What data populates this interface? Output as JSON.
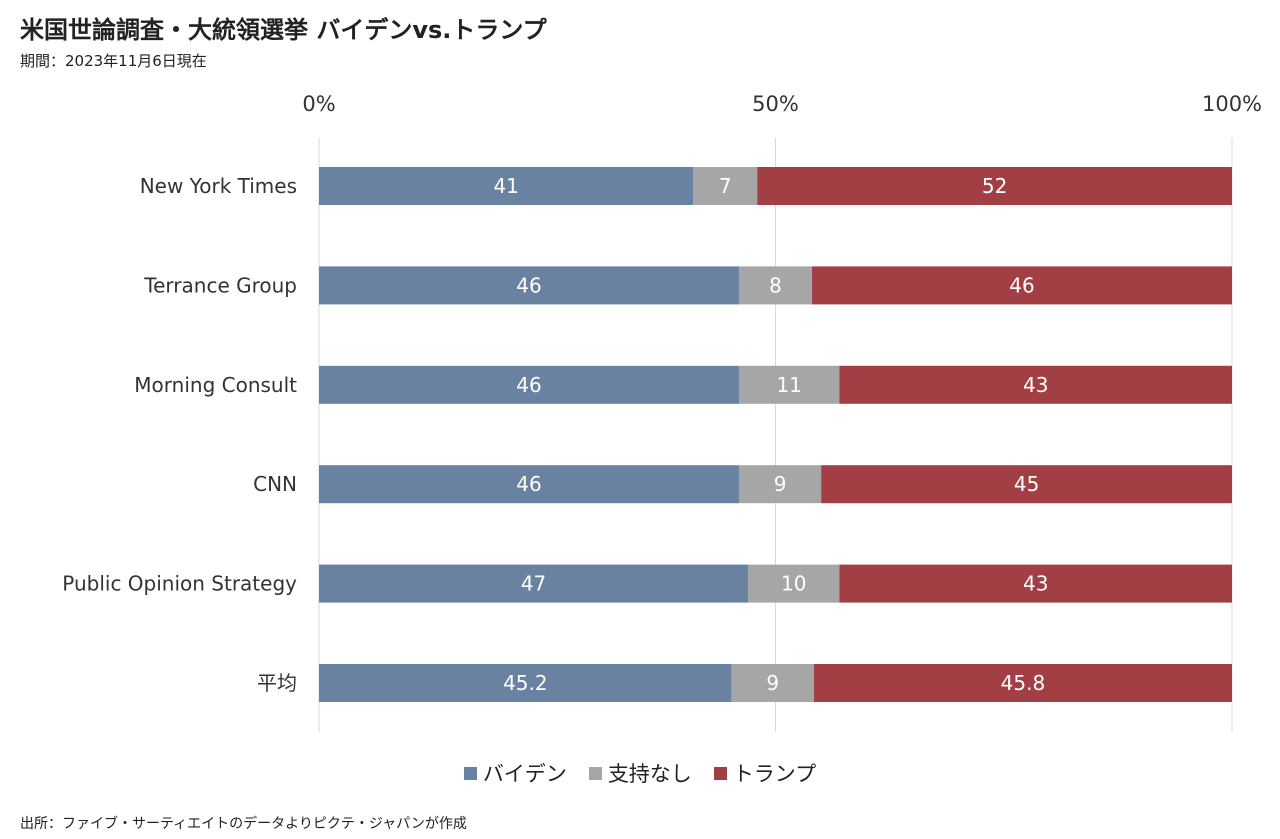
{
  "header": {
    "title": "米国世論調査・大統領選挙 バイデンvs.トランプ",
    "subtitle": "期間：2023年11月6日現在"
  },
  "source": "出所：ファイブ・サーティエイトのデータよりピクテ・ジャパンが作成",
  "chart_data": {
    "type": "bar",
    "orientation": "horizontal",
    "stacked": true,
    "normalized_to": 100,
    "categories": [
      "New York Times",
      "Terrance Group",
      "Morning Consult",
      "CNN",
      "Public Opinion Strategy",
      "平均"
    ],
    "series": [
      {
        "name": "バイデン",
        "color": "#6a82a2",
        "values": [
          41,
          46,
          46,
          46,
          47,
          45.2
        ]
      },
      {
        "name": "支持なし",
        "color": "#a6a6a6",
        "values": [
          7,
          8,
          11,
          9,
          10,
          9
        ]
      },
      {
        "name": "トランプ",
        "color": "#a13f45",
        "values": [
          52,
          46,
          43,
          45,
          43,
          45.8
        ]
      }
    ],
    "x_ticks": [
      "0%",
      "50%",
      "100%"
    ],
    "xlim": [
      0,
      100
    ],
    "x_axis_position": "top",
    "grid": true,
    "legend_position": "bottom"
  }
}
